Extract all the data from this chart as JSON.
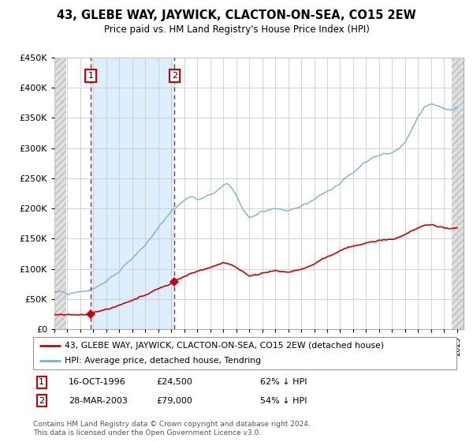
{
  "title": "43, GLEBE WAY, JAYWICK, CLACTON-ON-SEA, CO15 2EW",
  "subtitle": "Price paid vs. HM Land Registry's House Price Index (HPI)",
  "sale1_date": 1996.79,
  "sale1_price": 24500,
  "sale2_date": 2003.24,
  "sale2_price": 79000,
  "legend_red": "43, GLEBE WAY, JAYWICK, CLACTON-ON-SEA, CO15 2EW (detached house)",
  "legend_blue": "HPI: Average price, detached house, Tendring",
  "table_rows": [
    [
      "1",
      "16-OCT-1996",
      "£24,500",
      "62% ↓ HPI"
    ],
    [
      "2",
      "28-MAR-2003",
      "£79,000",
      "54% ↓ HPI"
    ]
  ],
  "footnote": "Contains HM Land Registry data © Crown copyright and database right 2024.\nThis data is licensed under the Open Government Licence v3.0.",
  "red_color": "#cc0000",
  "blue_color": "#7bafd4",
  "blue_fill": "#ddeeff",
  "hatch_color": "#d0d0d0",
  "ylim": [
    0,
    450000
  ],
  "xlim_start": 1994.0,
  "xlim_end": 2025.5,
  "hpi_data": [
    [
      1994.0,
      63000
    ],
    [
      1994.5,
      62000
    ],
    [
      1995.0,
      60000
    ],
    [
      1995.5,
      61000
    ],
    [
      1996.0,
      62000
    ],
    [
      1996.5,
      63000
    ],
    [
      1997.0,
      68000
    ],
    [
      1997.5,
      74000
    ],
    [
      1998.0,
      80000
    ],
    [
      1998.5,
      88000
    ],
    [
      1999.0,
      96000
    ],
    [
      1999.5,
      108000
    ],
    [
      2000.0,
      118000
    ],
    [
      2000.5,
      130000
    ],
    [
      2001.0,
      140000
    ],
    [
      2001.5,
      155000
    ],
    [
      2002.0,
      168000
    ],
    [
      2002.5,
      183000
    ],
    [
      2003.0,
      195000
    ],
    [
      2003.5,
      205000
    ],
    [
      2004.0,
      215000
    ],
    [
      2004.5,
      220000
    ],
    [
      2005.0,
      215000
    ],
    [
      2005.5,
      218000
    ],
    [
      2006.0,
      222000
    ],
    [
      2006.5,
      228000
    ],
    [
      2007.0,
      238000
    ],
    [
      2007.3,
      240000
    ],
    [
      2007.6,
      235000
    ],
    [
      2008.0,
      222000
    ],
    [
      2008.5,
      200000
    ],
    [
      2009.0,
      185000
    ],
    [
      2009.5,
      188000
    ],
    [
      2010.0,
      195000
    ],
    [
      2010.5,
      198000
    ],
    [
      2011.0,
      200000
    ],
    [
      2011.5,
      198000
    ],
    [
      2012.0,
      197000
    ],
    [
      2012.5,
      200000
    ],
    [
      2013.0,
      203000
    ],
    [
      2013.5,
      208000
    ],
    [
      2014.0,
      215000
    ],
    [
      2014.5,
      222000
    ],
    [
      2015.0,
      228000
    ],
    [
      2015.5,
      235000
    ],
    [
      2016.0,
      242000
    ],
    [
      2016.5,
      252000
    ],
    [
      2017.0,
      260000
    ],
    [
      2017.5,
      270000
    ],
    [
      2018.0,
      278000
    ],
    [
      2018.5,
      283000
    ],
    [
      2019.0,
      288000
    ],
    [
      2019.5,
      290000
    ],
    [
      2020.0,
      292000
    ],
    [
      2020.5,
      298000
    ],
    [
      2021.0,
      310000
    ],
    [
      2021.5,
      330000
    ],
    [
      2022.0,
      350000
    ],
    [
      2022.5,
      368000
    ],
    [
      2023.0,
      375000
    ],
    [
      2023.5,
      370000
    ],
    [
      2024.0,
      365000
    ],
    [
      2024.5,
      362000
    ],
    [
      2025.0,
      365000
    ]
  ],
  "prop_data": [
    [
      1994.0,
      24000
    ],
    [
      1994.5,
      24000
    ],
    [
      1995.0,
      24000
    ],
    [
      1995.5,
      24000
    ],
    [
      1996.0,
      24000
    ],
    [
      1996.5,
      24000
    ],
    [
      1996.79,
      24500
    ],
    [
      1997.0,
      27000
    ],
    [
      1997.5,
      30000
    ],
    [
      1998.0,
      33000
    ],
    [
      1998.5,
      36000
    ],
    [
      1999.0,
      40000
    ],
    [
      1999.5,
      44000
    ],
    [
      2000.0,
      48000
    ],
    [
      2000.5,
      53000
    ],
    [
      2001.0,
      57000
    ],
    [
      2001.5,
      62000
    ],
    [
      2002.0,
      67000
    ],
    [
      2002.5,
      72000
    ],
    [
      2003.0,
      76000
    ],
    [
      2003.24,
      79000
    ],
    [
      2003.5,
      82000
    ],
    [
      2004.0,
      87000
    ],
    [
      2004.5,
      92000
    ],
    [
      2005.0,
      96000
    ],
    [
      2005.5,
      99000
    ],
    [
      2006.0,
      102000
    ],
    [
      2006.5,
      107000
    ],
    [
      2007.0,
      110000
    ],
    [
      2007.5,
      108000
    ],
    [
      2008.0,
      103000
    ],
    [
      2008.5,
      96000
    ],
    [
      2009.0,
      88000
    ],
    [
      2009.5,
      90000
    ],
    [
      2010.0,
      93000
    ],
    [
      2010.5,
      96000
    ],
    [
      2011.0,
      97000
    ],
    [
      2011.5,
      96000
    ],
    [
      2012.0,
      95000
    ],
    [
      2012.5,
      97000
    ],
    [
      2013.0,
      99000
    ],
    [
      2013.5,
      103000
    ],
    [
      2014.0,
      108000
    ],
    [
      2014.5,
      115000
    ],
    [
      2015.0,
      120000
    ],
    [
      2015.5,
      125000
    ],
    [
      2016.0,
      130000
    ],
    [
      2016.5,
      135000
    ],
    [
      2017.0,
      138000
    ],
    [
      2017.5,
      140000
    ],
    [
      2018.0,
      143000
    ],
    [
      2018.5,
      145000
    ],
    [
      2019.0,
      147000
    ],
    [
      2019.5,
      148000
    ],
    [
      2020.0,
      149000
    ],
    [
      2020.5,
      152000
    ],
    [
      2021.0,
      157000
    ],
    [
      2021.5,
      163000
    ],
    [
      2022.0,
      168000
    ],
    [
      2022.5,
      172000
    ],
    [
      2023.0,
      173000
    ],
    [
      2023.5,
      170000
    ],
    [
      2024.0,
      168000
    ],
    [
      2024.5,
      167000
    ],
    [
      2025.0,
      168000
    ]
  ]
}
